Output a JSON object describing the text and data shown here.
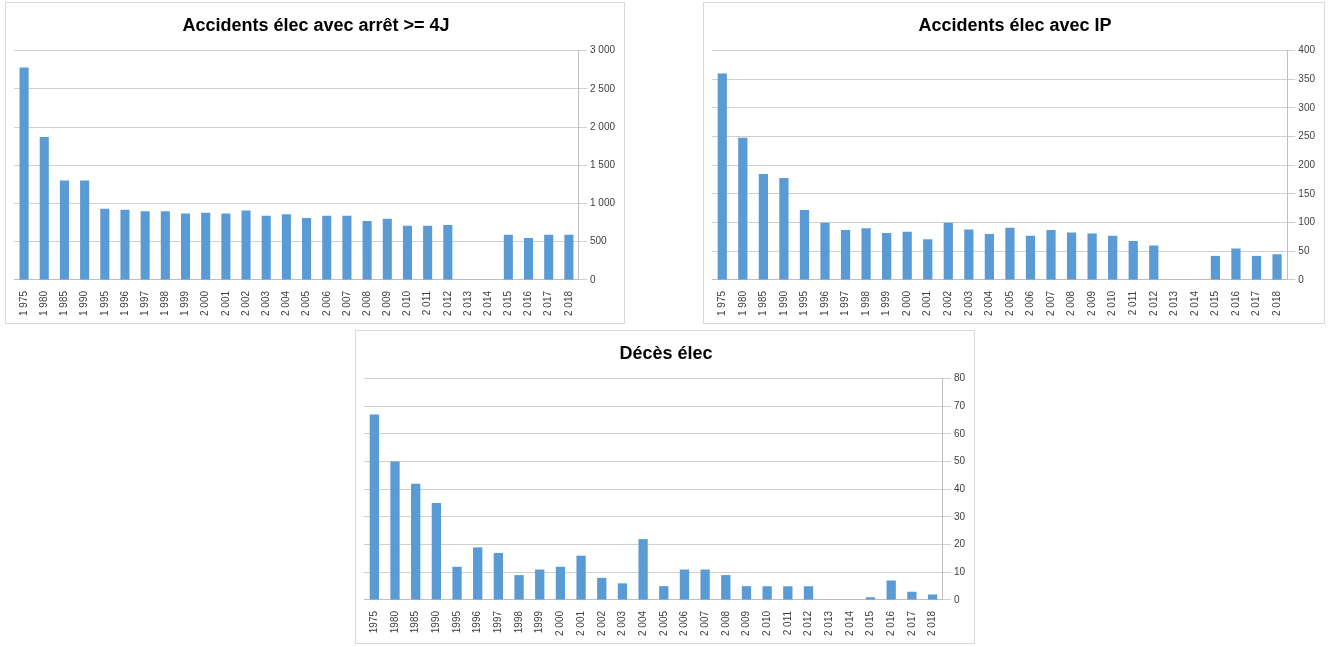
{
  "chart_data": [
    {
      "type": "bar",
      "title": "Accidents élec avec arrêt >= 4J",
      "categories": [
        "1 975",
        "1 980",
        "1 985",
        "1 990",
        "1 995",
        "1 996",
        "1 997",
        "1 998",
        "1 999",
        "2 000",
        "2 001",
        "2 002",
        "2 003",
        "2 004",
        "2 005",
        "2 006",
        "2 007",
        "2 008",
        "2 009",
        "2 010",
        "2 011",
        "2 012",
        "2 013",
        "2 014",
        "2 015",
        "2 016",
        "2 017",
        "2 018"
      ],
      "values": [
        2780,
        1870,
        1300,
        1300,
        930,
        920,
        900,
        900,
        870,
        880,
        870,
        910,
        840,
        860,
        810,
        840,
        840,
        770,
        800,
        710,
        710,
        720,
        null,
        null,
        590,
        550,
        590,
        590
      ],
      "color": "#5b9bd5",
      "ylim": [
        0,
        3000
      ],
      "yticks": [
        0,
        500,
        {
          "value": 1000,
          "label": "1 000"
        },
        {
          "value": 1500,
          "label": "1 500"
        },
        {
          "value": 2000,
          "label": "2 000"
        },
        {
          "value": 2500,
          "label": "2 500"
        },
        {
          "value": 3000,
          "label": "3 000"
        }
      ],
      "grid": "y",
      "legend": false
    },
    {
      "type": "bar",
      "title": "Accidents élec avec IP",
      "categories": [
        "1 975",
        "1 980",
        "1 985",
        "1 990",
        "1 995",
        "1 996",
        "1 997",
        "1 998",
        "1 999",
        "2 000",
        "2 001",
        "2 002",
        "2 003",
        "2 004",
        "2 005",
        "2 006",
        "2 007",
        "2 008",
        "2 009",
        "2 010",
        "2 011",
        "2 012",
        "2 013",
        "2 014",
        "2 015",
        "2 016",
        "2 017",
        "2 018"
      ],
      "values": [
        360,
        248,
        185,
        178,
        122,
        100,
        87,
        90,
        82,
        84,
        71,
        100,
        88,
        80,
        91,
        77,
        87,
        83,
        81,
        77,
        68,
        60,
        null,
        null,
        42,
        55,
        42,
        45
      ],
      "color": "#5b9bd5",
      "ylim": [
        0,
        400
      ],
      "yticks": [
        0,
        50,
        100,
        150,
        200,
        250,
        300,
        350,
        400
      ],
      "grid": "y",
      "legend": false
    },
    {
      "type": "bar",
      "title": "Décès élec",
      "categories": [
        "1975",
        "1980",
        "1985",
        "1990",
        "1995",
        "1996",
        "1997",
        "1998",
        "1999",
        "2 000",
        "2 001",
        "2 002",
        "2 003",
        "2 004",
        "2 005",
        "2 006",
        "2 007",
        "2 008",
        "2 009",
        "2 010",
        "2 011",
        "2 012",
        "2 013",
        "2 014",
        "2 015",
        "2 016",
        "2 017",
        "2 018"
      ],
      "values": [
        67,
        50,
        42,
        35,
        12,
        19,
        17,
        9,
        11,
        12,
        16,
        8,
        6,
        22,
        5,
        11,
        11,
        9,
        5,
        5,
        5,
        5,
        null,
        null,
        1,
        7,
        3,
        2
      ],
      "color": "#5b9bd5",
      "ylim": [
        0,
        80
      ],
      "yticks": [
        0,
        10,
        20,
        30,
        40,
        50,
        60,
        70,
        80
      ],
      "grid": "y",
      "legend": false
    }
  ]
}
